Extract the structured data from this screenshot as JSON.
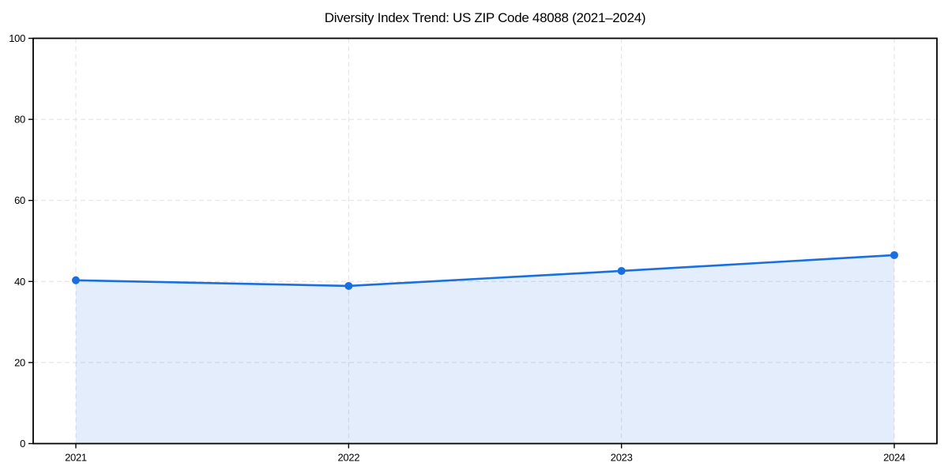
{
  "page": {
    "background": "#ffffff"
  },
  "chart_data": {
    "type": "area",
    "title": "Diversity Index Trend: US ZIP Code 48088 (2021–2024)",
    "categories": [
      "2021",
      "2022",
      "2023",
      "2024"
    ],
    "series": [
      {
        "name": "Diversity Index",
        "values": [
          40.3,
          38.9,
          42.6,
          46.5
        ]
      }
    ],
    "xlabel": "",
    "ylabel": "",
    "ylim": [
      0,
      100
    ],
    "yticks": [
      0,
      20,
      40,
      60,
      80,
      100
    ],
    "grid": {
      "visible": true,
      "style": "dashed",
      "axes": "both"
    },
    "legend_position": "none",
    "colors": {
      "line": "#1a6fe0",
      "marker": "#1a6fe0",
      "fill_rgba": "rgba(26, 111, 224, 0.12)",
      "grid": "#e0e0e0",
      "axis": "#000000",
      "tick_label": "#000000",
      "title": "#000000"
    }
  }
}
